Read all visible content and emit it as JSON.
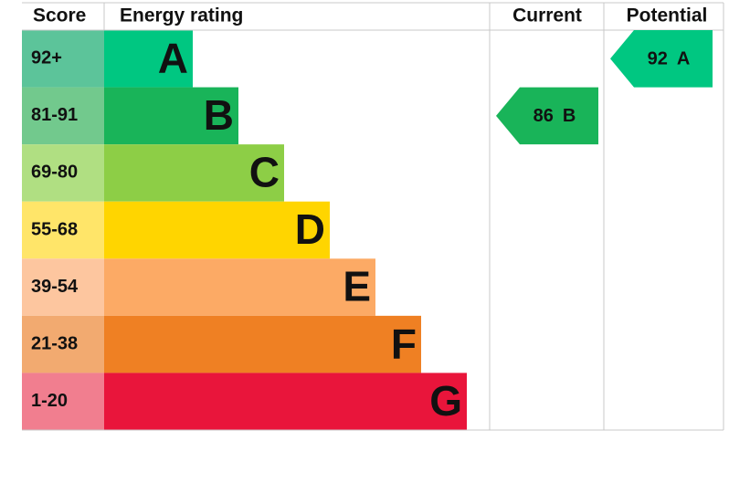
{
  "headers": {
    "score": "Score",
    "rating": "Energy rating",
    "current": "Current",
    "potential": "Potential"
  },
  "bands": [
    {
      "score": "92+",
      "letter": "A",
      "score_color": "#5cc49a",
      "color": "#00c781"
    },
    {
      "score": "81-91",
      "letter": "B",
      "score_color": "#72c98d",
      "color": "#19b459"
    },
    {
      "score": "69-80",
      "letter": "C",
      "score_color": "#b0df82",
      "color": "#8dce46"
    },
    {
      "score": "55-68",
      "letter": "D",
      "score_color": "#ffe569",
      "color": "#ffd500"
    },
    {
      "score": "39-54",
      "letter": "E",
      "score_color": "#fdc69f",
      "color": "#fcaa65"
    },
    {
      "score": "21-38",
      "letter": "F",
      "score_color": "#f2aa70",
      "color": "#ef8023"
    },
    {
      "score": "1-20",
      "letter": "G",
      "score_color": "#f17e8f",
      "color": "#e9153b"
    }
  ],
  "current": {
    "value": 86,
    "rating": "B"
  },
  "potential": {
    "value": 92,
    "rating": "A"
  }
}
